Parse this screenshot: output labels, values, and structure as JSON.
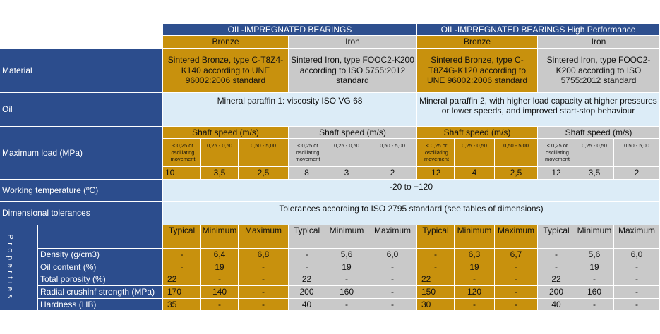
{
  "header": {
    "group1": "OIL-IMPREGNATED BEARINGS",
    "group2": "OIL-IMPREGNATED BEARINGS High Performance",
    "bronze": "Bronze",
    "iron": "Iron"
  },
  "rows": {
    "material": "Material",
    "oil": "Oil",
    "max_load": "Maximum load (MPa)",
    "working_temp": "Working temperature (ºC)",
    "dim_tol": "Dimensional tolerances",
    "properties": "Properties"
  },
  "material": {
    "g1_bronze": "Sintered Bronze, type C-T8Z4-K140 according to UNE 96002:2006 standard",
    "g1_iron": "Sintered Iron, type FOOC2-K200 according to ISO 5755:2012 standard",
    "g2_bronze": "Sintered Bronze, type C-T8Z4G-K120 according to UNE 96002:2006 standard",
    "g2_iron": "Sintered Iron, type FOOC2-K200 according to ISO 5755:2012 standard"
  },
  "oil": {
    "g1": "Mineral paraffin 1: viscosity ISO VG 68",
    "g2": "Mineral paraffin 2, with higher load capacity at higher pressures or lower speeds, and improved start-stop behaviour"
  },
  "max_load": {
    "shaft_speed": "Shaft speed (m/s)",
    "speed1": "< 0,25 or oscillating movement",
    "speed2": "0,25 - 0,50",
    "speed3": "0,50 - 5,00",
    "g1_bronze": [
      "10",
      "3,5",
      "2,5"
    ],
    "g1_iron": [
      "8",
      "3",
      "2"
    ],
    "g2_bronze": [
      "12",
      "4",
      "2,5"
    ],
    "g2_iron": [
      "12",
      "3,5",
      "2"
    ]
  },
  "working_temp": "-20 to +120",
  "dim_tol": "Tolerances according to ISO 2795 standard (see tables of dimensions)",
  "properties": {
    "col_typical": "Typical",
    "col_min": "Minimum",
    "col_max": "Maximum",
    "items": [
      {
        "label": "Density (g/cm3)",
        "vals": [
          "-",
          "6,4",
          "6,8",
          "-",
          "5,6",
          "6,0",
          "-",
          "6,3",
          "6,7",
          "-",
          "5,6",
          "6,0"
        ]
      },
      {
        "label": "Oil content (%)",
        "vals": [
          "-",
          "19",
          "-",
          "-",
          "19",
          "-",
          "-",
          "19",
          "-",
          "-",
          "19",
          "-"
        ]
      },
      {
        "label": "Total porosity (%)",
        "vals": [
          "22",
          "-",
          "-",
          "22",
          "-",
          "-",
          "22",
          "-",
          "-",
          "22",
          "-",
          "-"
        ]
      },
      {
        "label": "Radial crushinf strength (MPa)",
        "vals": [
          "170",
          "140",
          "-",
          "200",
          "160",
          "-",
          "150",
          "120",
          "-",
          "200",
          "160",
          "-"
        ]
      },
      {
        "label": "Hardness (HB)",
        "vals": [
          "35",
          "-",
          "-",
          "40",
          "-",
          "-",
          "30",
          "-",
          "-",
          "40",
          "-",
          "-"
        ]
      }
    ]
  }
}
